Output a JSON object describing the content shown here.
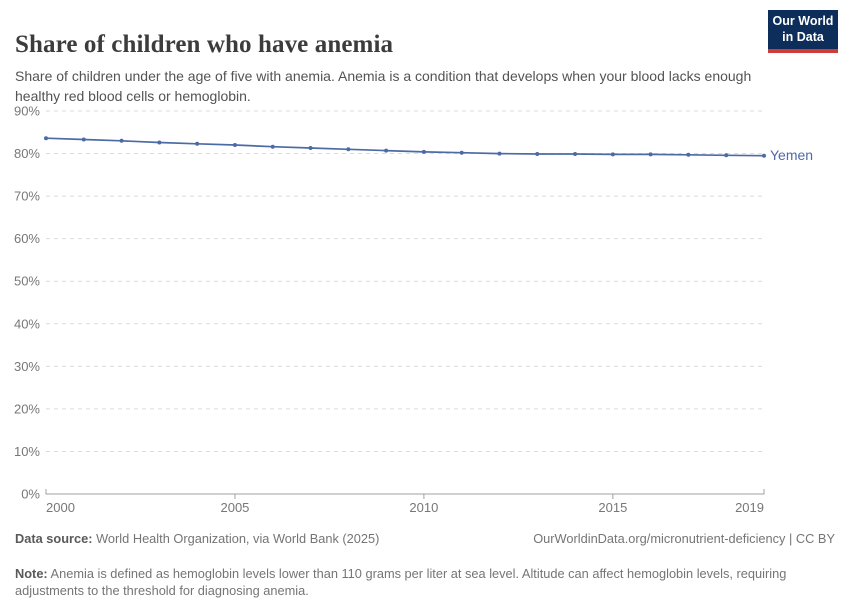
{
  "header": {
    "title": "Share of children who have anemia",
    "subtitle": "Share of children under the age of five with anemia. Anemia is a condition that develops when your blood lacks enough healthy red blood cells or hemoglobin."
  },
  "logo": {
    "line1": "Our World",
    "line2": "in Data"
  },
  "chart_data": {
    "type": "line",
    "title": "Share of children who have anemia",
    "x": [
      2000,
      2001,
      2002,
      2003,
      2004,
      2005,
      2006,
      2007,
      2008,
      2009,
      2010,
      2011,
      2012,
      2013,
      2014,
      2015,
      2016,
      2017,
      2018,
      2019
    ],
    "series": [
      {
        "name": "Yemen",
        "color": "#4C6BA5",
        "values": [
          83.6,
          83.3,
          83.0,
          82.6,
          82.3,
          82.0,
          81.6,
          81.3,
          81.0,
          80.7,
          80.4,
          80.2,
          80.0,
          79.9,
          79.9,
          79.8,
          79.8,
          79.7,
          79.6,
          79.5
        ]
      }
    ],
    "ylim": [
      0,
      90
    ],
    "yticks": [
      0,
      10,
      20,
      30,
      40,
      50,
      60,
      70,
      80,
      90
    ],
    "ytick_suffix": "%",
    "xticks": [
      2000,
      2005,
      2010,
      2015,
      2019
    ],
    "xlabel": "",
    "ylabel": "",
    "grid": "horizontal-dashed",
    "legend_position": "end-of-line"
  },
  "footer": {
    "data_source_label": "Data source:",
    "data_source_text": " World Health Organization, via World Bank (2025)",
    "link_text": "OurWorldinData.org/micronutrient-deficiency | CC BY",
    "note_label": "Note:",
    "note_text": " Anemia is defined as hemoglobin levels lower than 110 grams per liter at sea level. Altitude can affect hemoglobin levels, requiring adjustments to the threshold for diagnosing anemia."
  },
  "colors": {
    "accent": "#4C6BA5",
    "grid": "#DBDBDB",
    "axis": "#A0A0A0",
    "tick_label": "#777777",
    "title": "#3C3C3C",
    "subtitle": "#535353",
    "footer": "#757575",
    "logo_bg": "#0D2E5A",
    "logo_red": "#CF3A3A",
    "background": "#FFFFFF"
  }
}
